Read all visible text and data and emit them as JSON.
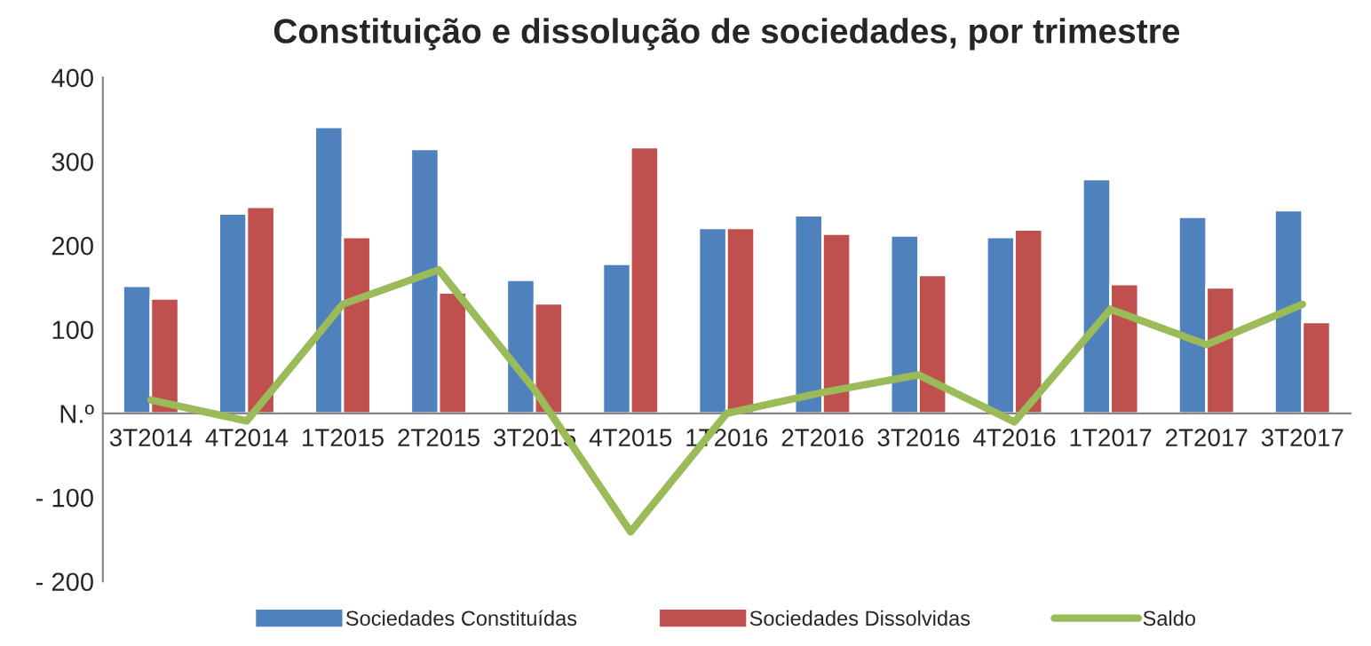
{
  "chart_data": {
    "type": "bar",
    "title": "Constituição e dissolução de sociedades, por trimestre",
    "categories": [
      "3T2014",
      "4T2014",
      "1T2015",
      "2T2015",
      "3T2015",
      "4T2015",
      "1T2016",
      "2T2016",
      "3T2016",
      "4T2016",
      "1T2017",
      "2T2017",
      "3T2017"
    ],
    "series": [
      {
        "name": "Sociedades Constituídas",
        "color": "#4f81bd",
        "values": [
          152,
          238,
          341,
          315,
          159,
          178,
          221,
          236,
          212,
          210,
          279,
          234,
          242
        ]
      },
      {
        "name": "Sociedades Dissolvidas",
        "color": "#c0504d",
        "values": [
          137,
          246,
          210,
          144,
          131,
          317,
          221,
          214,
          165,
          219,
          154,
          150,
          109
        ]
      },
      {
        "name": "Saldo",
        "type": "line",
        "color": "#9bbb59",
        "values": [
          16,
          -9,
          130,
          171,
          28,
          -141,
          0,
          25,
          46,
          -10,
          124,
          82,
          130
        ]
      }
    ],
    "ylim": [
      -200,
      400
    ],
    "yticks": [
      {
        "value": -200,
        "label": "- 200"
      },
      {
        "value": -100,
        "label": "- 100"
      },
      {
        "value": 0,
        "label": "N.º"
      },
      100,
      200,
      300,
      400
    ],
    "grid": false,
    "legend": "bottom",
    "marker": "none",
    "line_style": "solid"
  }
}
